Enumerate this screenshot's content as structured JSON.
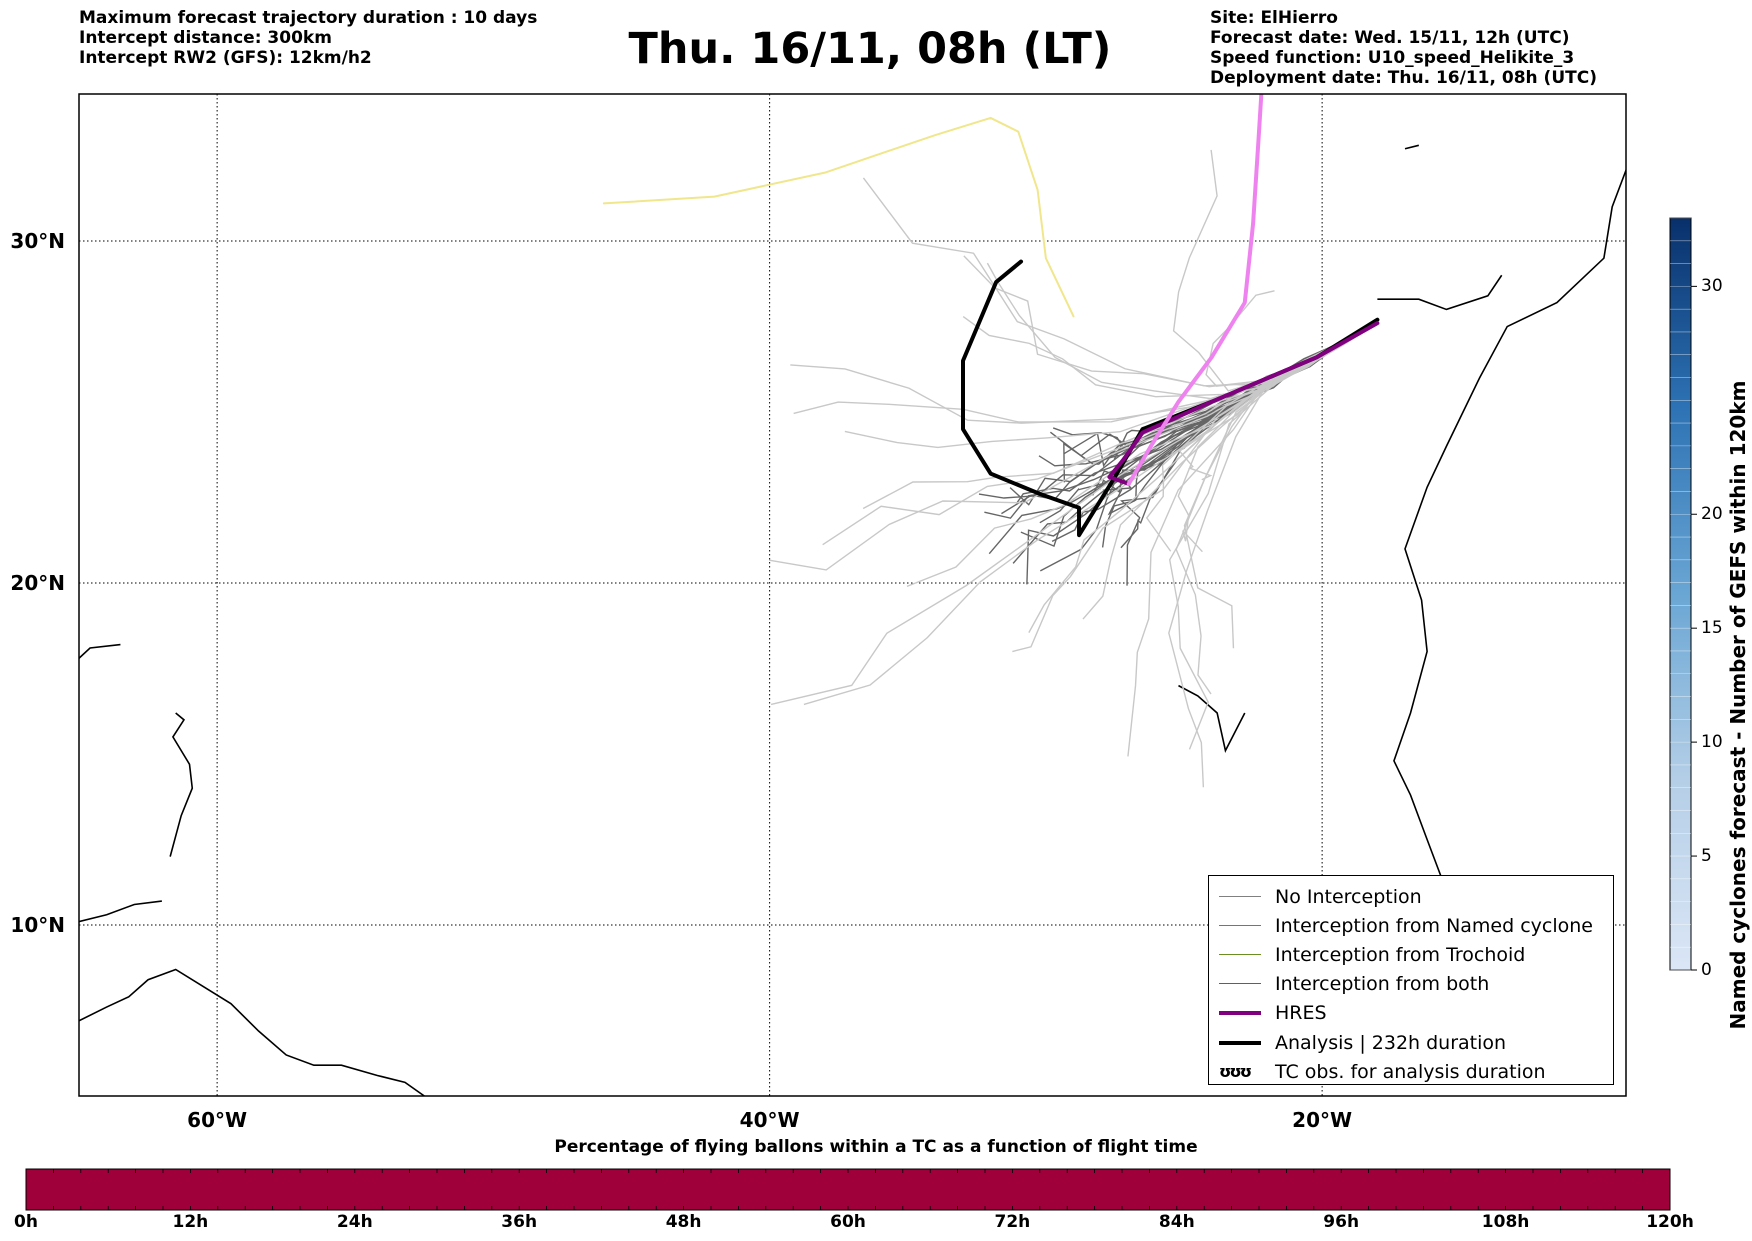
{
  "header": {
    "left": [
      "Maximum forecast trajectory duration : 10 days",
      "Intercept distance: 300km",
      "Intercept RW2 (GFS):  12km/h2"
    ],
    "title": "Thu. 16/11, 08h (LT)",
    "right": [
      "Site: ElHierro",
      "Forecast date: Wed. 15/11, 12h (UTC)",
      "Speed function: U10_speed_Helikite_3",
      "Deployment date: Thu. 16/11, 08h (UTC)"
    ]
  },
  "chart_data": {
    "type": "line",
    "lon_range": [
      -65,
      15
    ],
    "lat_range": [
      5,
      34.3
    ],
    "x_ticks": [
      {
        "value": -60,
        "label": "60°W"
      },
      {
        "value": -40,
        "label": "40°W"
      },
      {
        "value": -20,
        "label": "20°W"
      }
    ],
    "y_ticks": [
      {
        "value": 10,
        "label": "10°N"
      },
      {
        "value": 20,
        "label": "20°N"
      },
      {
        "value": 30,
        "label": "30°N"
      }
    ],
    "grid": true,
    "legend_position": "bottom-right",
    "legend": [
      {
        "label": "No Interception",
        "color": "#808080",
        "style": "line"
      },
      {
        "label": "Interception from Named cyclone",
        "color": "#ff4500",
        "style": "line"
      },
      {
        "label": "Interception from Trochoid",
        "color": "#6b8e23",
        "style": "line"
      },
      {
        "label": "Interception from both",
        "color": "#228b22",
        "style": "line"
      },
      {
        "label": "HRES",
        "color": "#800080",
        "style": "thick"
      },
      {
        "label": "Analysis | 232h duration",
        "color": "#000000",
        "style": "thick"
      },
      {
        "label": "TC obs. for analysis duration",
        "color": "#000000",
        "style": "symbol",
        "symbol": "ʊʊʊ"
      }
    ],
    "series": [
      {
        "name": "Analysis | 232h duration",
        "color": "#000000",
        "width": 4,
        "points": [
          [
            -18.0,
            27.7
          ],
          [
            -20.2,
            26.6
          ],
          [
            -24.0,
            25.3
          ],
          [
            -26.5,
            24.5
          ],
          [
            -27.5,
            23.1
          ],
          [
            -28.8,
            21.4
          ],
          [
            -28.8,
            22.2
          ],
          [
            -30.2,
            22.6
          ],
          [
            -32.0,
            23.2
          ],
          [
            -33.0,
            24.5
          ],
          [
            -33.0,
            26.5
          ],
          [
            -31.8,
            28.8
          ],
          [
            -30.9,
            29.4
          ]
        ]
      },
      {
        "name": "HRES",
        "color": "#800080",
        "width": 4,
        "points": [
          [
            -18.0,
            27.6
          ],
          [
            -20.2,
            26.6
          ],
          [
            -24.0,
            25.3
          ],
          [
            -26.5,
            24.4
          ],
          [
            -27.2,
            23.6
          ],
          [
            -27.7,
            23.1
          ],
          [
            -27.0,
            22.9
          ]
        ]
      },
      {
        "name": "",
        "color": "#ee82ee",
        "width": 4,
        "points": [
          [
            -27.0,
            22.9
          ],
          [
            -26.2,
            24.0
          ],
          [
            -25.2,
            25.3
          ],
          [
            -24.0,
            26.6
          ],
          [
            -22.8,
            28.2
          ],
          [
            -22.5,
            30.5
          ],
          [
            -22.3,
            33.0
          ],
          [
            -22.2,
            34.3
          ]
        ]
      },
      {
        "name": "",
        "color": "#f0e68c",
        "width": 2,
        "points": [
          [
            -29.0,
            27.8
          ],
          [
            -30.0,
            29.5
          ],
          [
            -30.3,
            31.5
          ],
          [
            -31.0,
            33.2
          ],
          [
            -32.0,
            33.6
          ],
          [
            -34.0,
            33.1
          ],
          [
            -38.0,
            32.0
          ],
          [
            -42.0,
            31.3
          ],
          [
            -46.0,
            31.1
          ]
        ]
      }
    ],
    "ensemble_members": 52,
    "bottom_colorbar": {
      "title": "Percentage of flying ballons within a TC as a function of flight time",
      "ticks": [
        "0h",
        "12h",
        "24h",
        "36h",
        "48h",
        "60h",
        "72h",
        "84h",
        "96h",
        "108h",
        "120h"
      ],
      "color": "#a0003a"
    },
    "side_colorbar": {
      "label": "Named cyclones forecast - Number of GEFS within 120km",
      "ticks": [
        0,
        5,
        10,
        15,
        20,
        30
      ],
      "range": [
        0,
        33
      ]
    }
  }
}
